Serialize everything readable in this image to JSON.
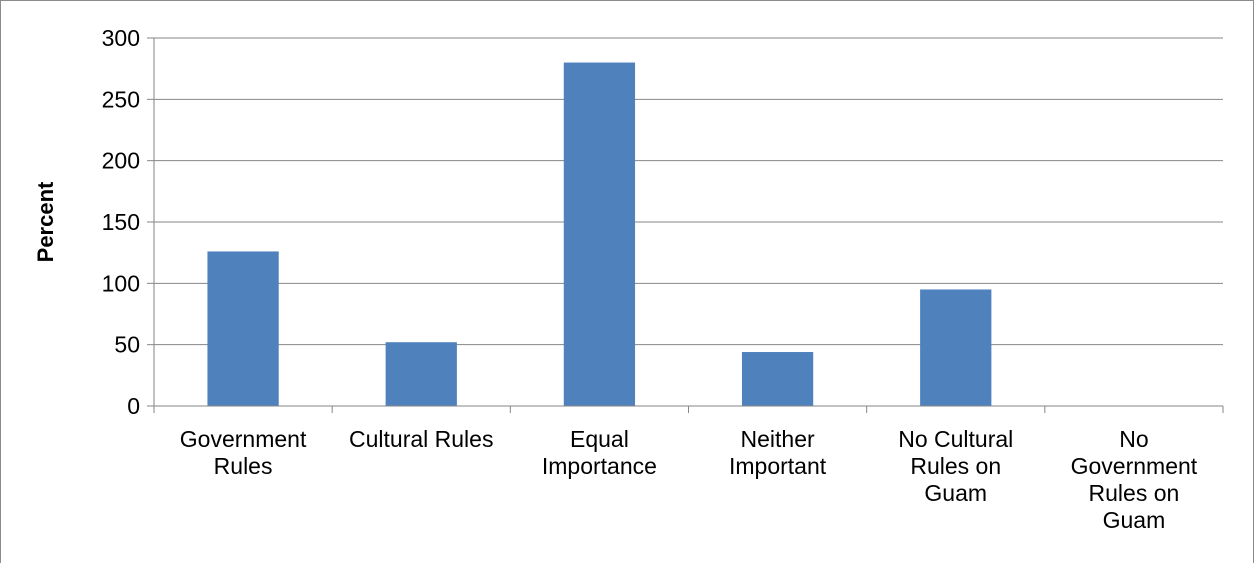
{
  "chart_data": {
    "type": "bar",
    "title": "",
    "xlabel": "",
    "ylabel": "Percent",
    "categories": [
      [
        "Government",
        "Rules"
      ],
      [
        "Cultural Rules"
      ],
      [
        "Equal",
        "Importance"
      ],
      [
        "Neither",
        "Important"
      ],
      [
        "No Cultural",
        "Rules on",
        "Guam"
      ],
      [
        "No",
        "Government",
        "Rules on",
        "Guam"
      ]
    ],
    "values": [
      126,
      52,
      280,
      44,
      95,
      0
    ],
    "ylim": [
      0,
      300
    ],
    "yticks": [
      0,
      50,
      100,
      150,
      200,
      250,
      300
    ],
    "grid": true,
    "legend": "none",
    "colors": {
      "bar": "#4F81BD",
      "grid": "#868686",
      "axis": "#868686"
    }
  }
}
